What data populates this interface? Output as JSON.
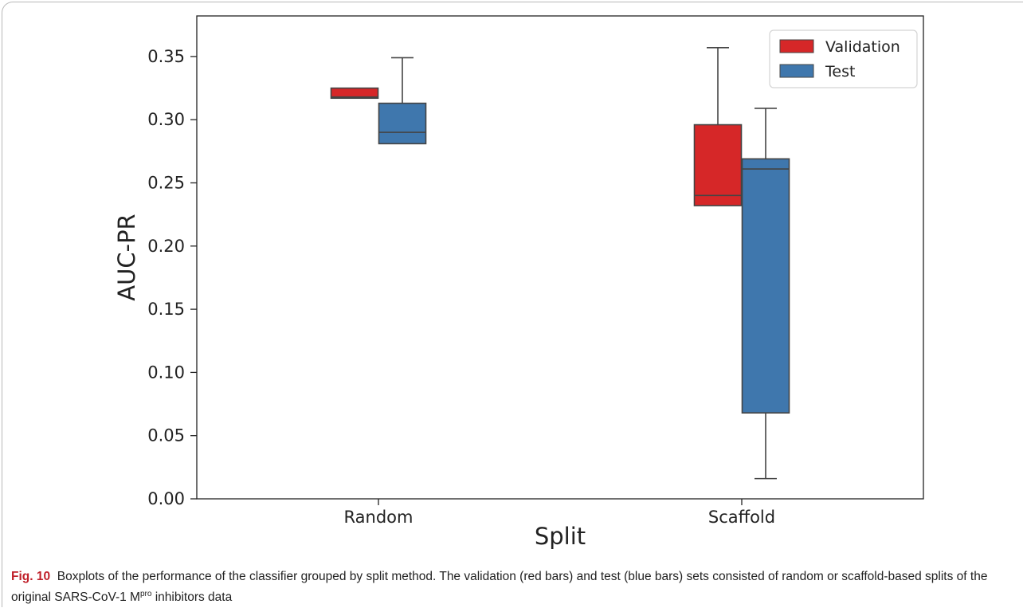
{
  "caption": {
    "label": "Fig. 10",
    "text_before": "Boxplots of the performance of the classifier grouped by split method. The validation (red bars) and test (blue bars) sets consisted of random or scaffold-based splits of the original SARS-CoV-1 M",
    "superscript": "pro",
    "text_after": " inhibitors data"
  },
  "chart_data": {
    "type": "box",
    "xlabel": "Split",
    "ylabel": "AUC-PR",
    "categories": [
      "Random",
      "Scaffold"
    ],
    "ylim": [
      0.0,
      0.37
    ],
    "yticks": [
      "0.00",
      "0.05",
      "0.10",
      "0.15",
      "0.20",
      "0.25",
      "0.30",
      "0.35"
    ],
    "grid": false,
    "legend": "top-right",
    "series": [
      {
        "name": "Validation",
        "color": "#d62728",
        "boxes": [
          {
            "category": "Random",
            "whisker_low": 0.317,
            "q1": 0.317,
            "median": 0.318,
            "q3": 0.325,
            "whisker_high": 0.325
          },
          {
            "category": "Scaffold",
            "whisker_low": 0.232,
            "q1": 0.232,
            "median": 0.24,
            "q3": 0.296,
            "whisker_high": 0.357
          }
        ]
      },
      {
        "name": "Test",
        "color": "#3f77ad",
        "boxes": [
          {
            "category": "Random",
            "whisker_low": 0.281,
            "q1": 0.281,
            "median": 0.29,
            "q3": 0.313,
            "whisker_high": 0.349
          },
          {
            "category": "Scaffold",
            "whisker_low": 0.016,
            "q1": 0.068,
            "median": 0.261,
            "q3": 0.269,
            "whisker_high": 0.309
          }
        ]
      }
    ]
  }
}
